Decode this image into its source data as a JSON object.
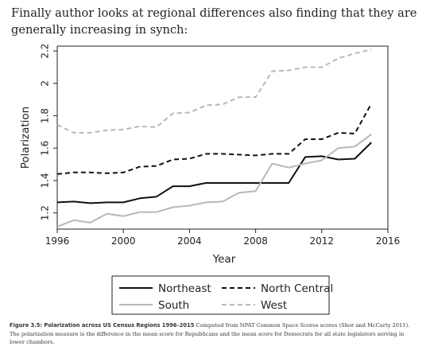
{
  "intro_text": "Finally author looks at regional differences also finding that they are generally increasing in synch:",
  "caption": {
    "label": "Figure 3.5: Polarization across US Census Regions 1996–2015",
    "text": " Computed from NPAT Common Space Scores scores (Shor and McCarty 2011). The polarization measure is the difference in the mean score for Republicans and the mean score for Democrats for all state legislators serving in lower chambers."
  },
  "chart_data": {
    "type": "line",
    "xlabel": "Year",
    "ylabel": "Polarization",
    "xlim": [
      1996,
      2016
    ],
    "ylim": [
      1.1,
      2.23
    ],
    "x_ticks": [
      1996,
      2000,
      2004,
      2008,
      2012,
      2016
    ],
    "y_ticks": [
      1.2,
      1.4,
      1.6,
      1.8,
      2,
      2.2
    ],
    "x_tick_labels": [
      "1996",
      "2000",
      "2004",
      "2008",
      "2012",
      "2016"
    ],
    "y_tick_labels": [
      "1.2",
      "1.4",
      "1.6",
      "1.8",
      "2",
      "2.2"
    ],
    "grid": false,
    "legend_position": "bottom",
    "x": [
      1996,
      1997,
      1998,
      1999,
      2000,
      2001,
      2002,
      2003,
      2004,
      2005,
      2006,
      2007,
      2008,
      2009,
      2010,
      2011,
      2012,
      2013,
      2014,
      2015
    ],
    "series": [
      {
        "name": "Northeast",
        "color": "#111111",
        "dash": "solid",
        "values": [
          1.265,
          1.27,
          1.26,
          1.265,
          1.265,
          1.29,
          1.3,
          1.365,
          1.365,
          1.385,
          1.385,
          1.385,
          1.385,
          1.385,
          1.385,
          1.545,
          1.55,
          1.53,
          1.535,
          1.635
        ]
      },
      {
        "name": "North Central",
        "color": "#111111",
        "dash": "dashed",
        "values": [
          1.44,
          1.45,
          1.45,
          1.445,
          1.45,
          1.485,
          1.49,
          1.53,
          1.535,
          1.565,
          1.565,
          1.56,
          1.555,
          1.565,
          1.565,
          1.655,
          1.655,
          1.695,
          1.69,
          1.875
        ]
      },
      {
        "name": "South",
        "color": "#b8b8b8",
        "dash": "solid",
        "values": [
          1.115,
          1.155,
          1.14,
          1.195,
          1.18,
          1.205,
          1.205,
          1.235,
          1.245,
          1.265,
          1.27,
          1.325,
          1.335,
          1.505,
          1.48,
          1.505,
          1.525,
          1.6,
          1.61,
          1.685
        ]
      },
      {
        "name": "West",
        "color": "#b8b8b8",
        "dash": "dashed",
        "values": [
          1.745,
          1.695,
          1.695,
          1.71,
          1.715,
          1.735,
          1.73,
          1.815,
          1.82,
          1.865,
          1.87,
          1.915,
          1.915,
          2.075,
          2.08,
          2.1,
          2.1,
          2.155,
          2.185,
          2.21
        ]
      }
    ]
  }
}
